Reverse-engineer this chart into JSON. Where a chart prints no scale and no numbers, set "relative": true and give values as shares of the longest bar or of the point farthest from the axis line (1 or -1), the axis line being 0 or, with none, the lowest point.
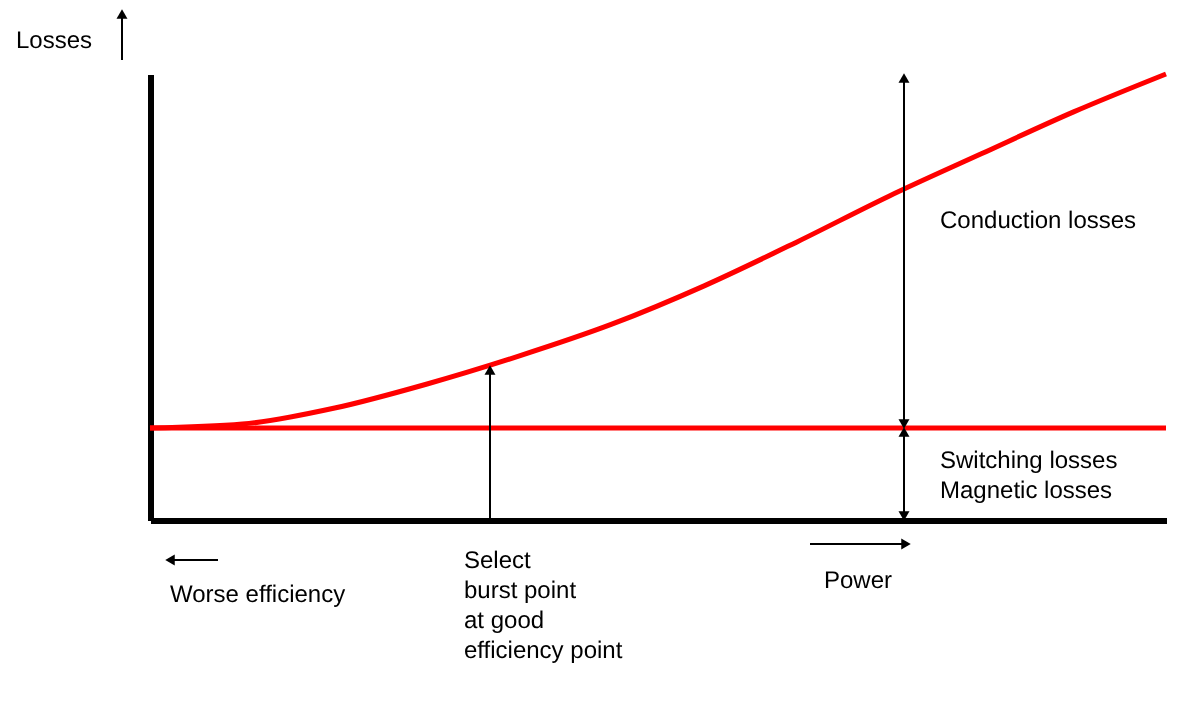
{
  "chart_data": {
    "type": "line",
    "relative": true,
    "ylabel": "Losses",
    "xlabel": "Power",
    "grid": false,
    "marker": "none",
    "line_style": "solid",
    "categories": [
      null,
      null,
      null,
      null,
      null,
      null,
      null,
      null,
      null,
      null,
      null,
      null
    ],
    "series": [
      {
        "color": "#ff0000",
        "values": [
          0.206,
          0.215,
          0.251,
          0.305,
          0.368,
          0.439,
          0.525,
          0.623,
          0.726,
          0.821,
          0.915,
          1.0
        ]
      },
      {
        "color": "#ff0000",
        "values": [
          0.206,
          0.206,
          0.206,
          0.206,
          0.206,
          0.206,
          0.206,
          0.206,
          0.206,
          0.206,
          0.206,
          0.206
        ]
      }
    ],
    "annotations": [
      "Conduction losses",
      "Switching losses",
      "Magnetic losses",
      "Worse efficiency",
      "Select\nburst point\nat good\nefficiency point"
    ]
  }
}
